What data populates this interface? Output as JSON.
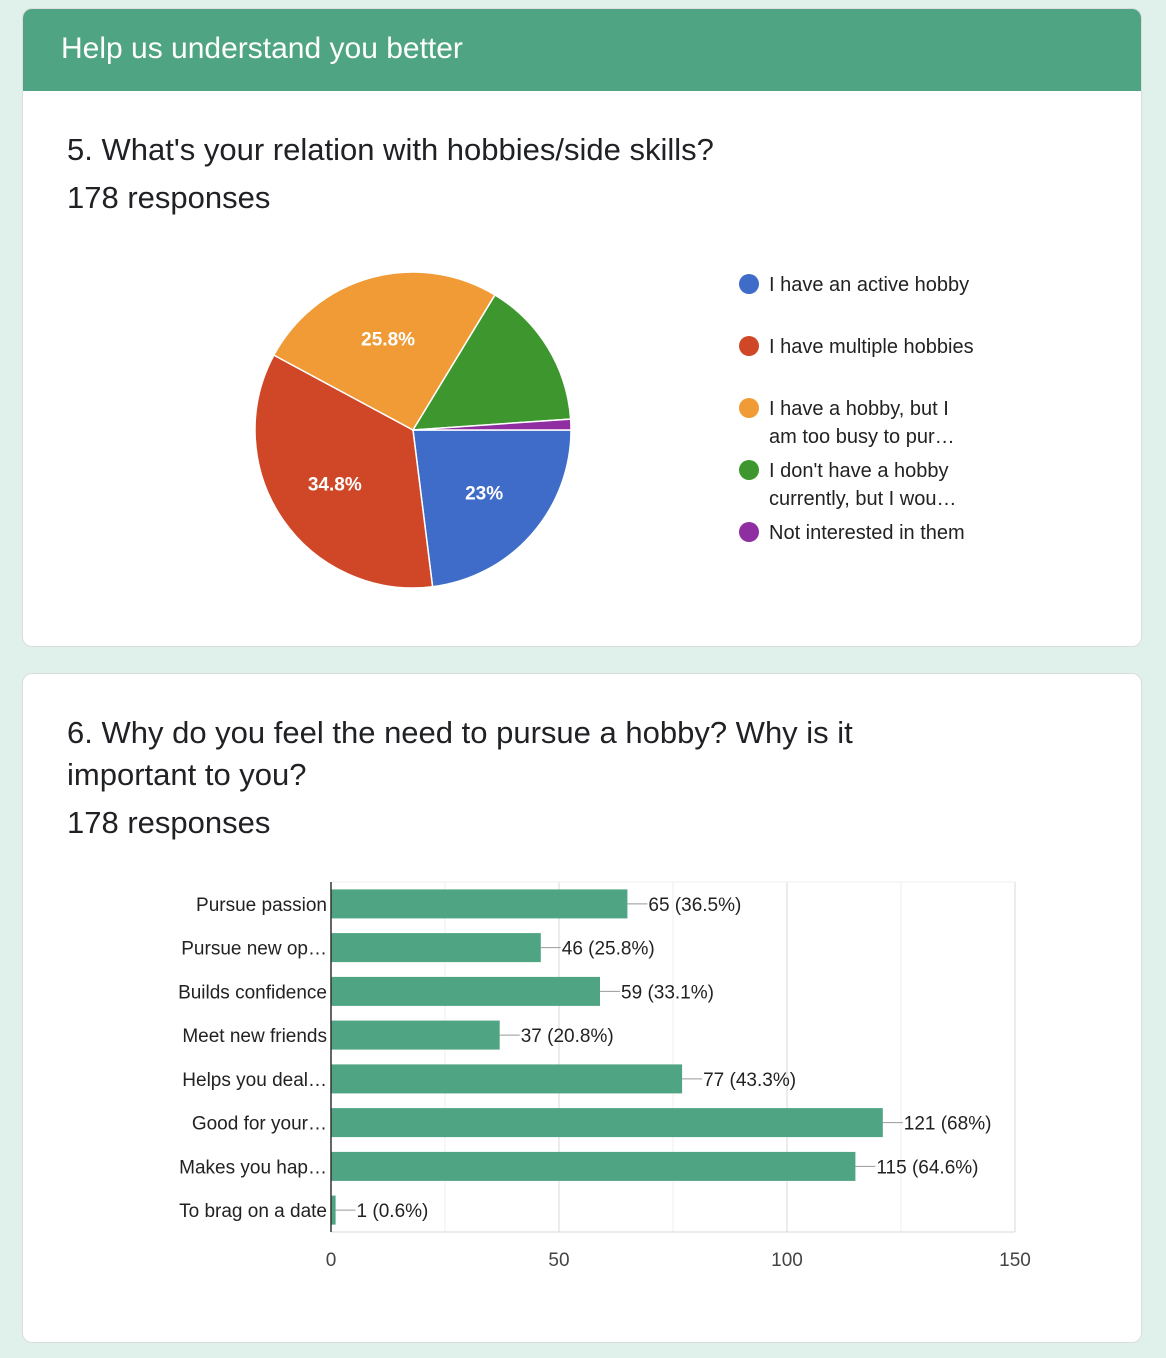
{
  "section": {
    "title": "Help us understand you better"
  },
  "q5": {
    "title": "5. What's your relation with hobbies/side skills?",
    "responses": "178 responses"
  },
  "q6": {
    "title": "6. Why do you feel the need to pursue a hobby? Why is it important to you?",
    "responses": "178 responses"
  },
  "chart_data": [
    {
      "type": "pie",
      "title": "5. What's your relation with hobbies/side skills?",
      "labels": [
        "I have an active hobby",
        "I have multiple hobbies",
        "I have a hobby, but I am too busy to pur…",
        "I don't have a hobby currently, but I wou…",
        "Not interested in them"
      ],
      "values": [
        23,
        34.8,
        25.8,
        15.2,
        1.1
      ],
      "slice_labels": [
        "23%",
        "34.8%",
        "25.8%",
        "",
        ""
      ],
      "colors": [
        "#3f6bc9",
        "#d04727",
        "#f09b36",
        "#3e962e",
        "#8e2ea0"
      ],
      "legend_position": "right"
    },
    {
      "type": "bar",
      "orientation": "horizontal",
      "title": "6. Why do you feel the need to pursue a hobby? Why is it important to you?",
      "categories": [
        "Pursue passion",
        "Pursue new op…",
        "Builds confidence",
        "Meet new friends",
        "Helps you deal…",
        "Good for your…",
        "Makes you hap…",
        "To brag on a date"
      ],
      "values": [
        65,
        46,
        59,
        37,
        77,
        121,
        115,
        1
      ],
      "data_labels": [
        "65 (36.5%)",
        "46 (25.8%)",
        "59 (33.1%)",
        "37 (20.8%)",
        "77 (43.3%)",
        "121 (68%)",
        "115 (64.6%)",
        "1 (0.6%)"
      ],
      "xlim": [
        0,
        150
      ],
      "xticks": [
        0,
        50,
        100,
        150
      ],
      "grid": true,
      "color": "#4fa583"
    }
  ]
}
